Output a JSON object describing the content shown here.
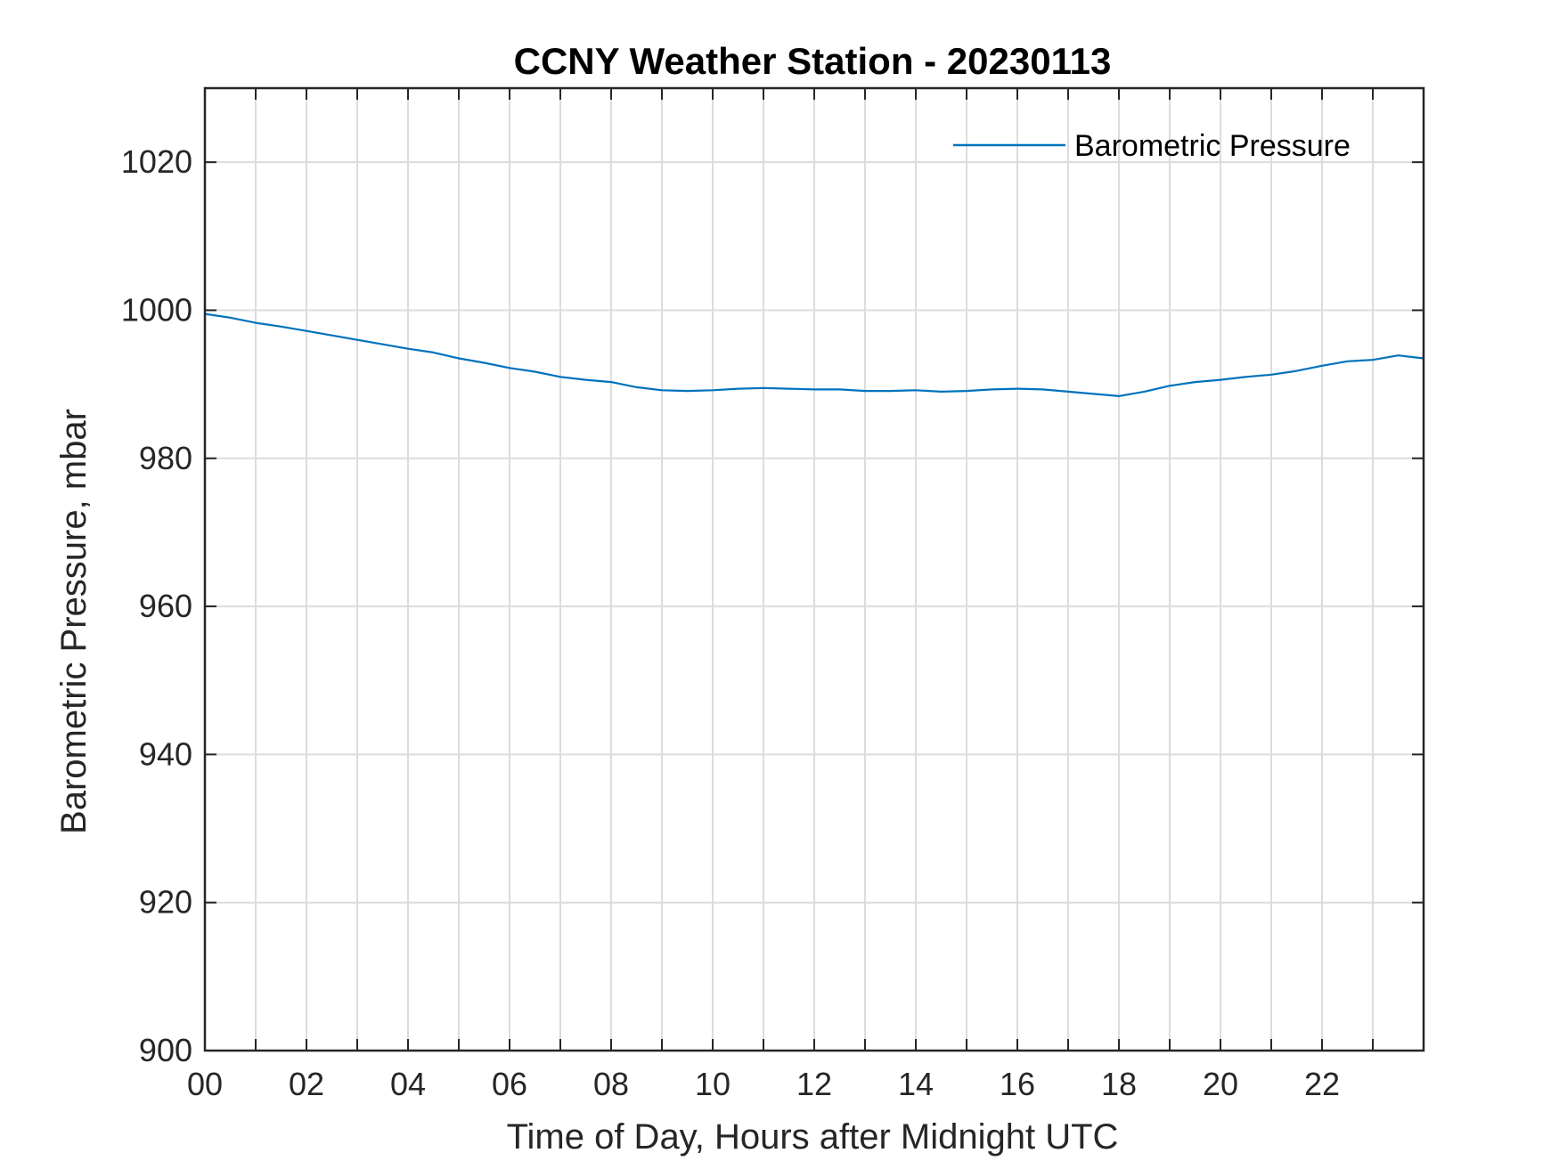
{
  "chart_data": {
    "type": "line",
    "title": "CCNY Weather Station - 20230113",
    "xlabel": "Time of Day, Hours after Midnight UTC",
    "ylabel": "Barometric Pressure, mbar",
    "xlim": [
      0,
      24
    ],
    "ylim": [
      900,
      1030
    ],
    "x_ticks": [
      0,
      2,
      4,
      6,
      8,
      10,
      12,
      14,
      16,
      18,
      20,
      22
    ],
    "x_tick_labels": [
      "00",
      "02",
      "04",
      "06",
      "08",
      "10",
      "12",
      "14",
      "16",
      "18",
      "20",
      "22"
    ],
    "x_minor_ticks": [
      1,
      3,
      5,
      7,
      9,
      11,
      13,
      15,
      17,
      19,
      21,
      23
    ],
    "y_ticks": [
      900,
      920,
      940,
      960,
      980,
      1000,
      1020
    ],
    "y_tick_labels": [
      "900",
      "920",
      "940",
      "960",
      "980",
      "1000",
      "1020"
    ],
    "grid": true,
    "legend_position": "top-right",
    "series": [
      {
        "name": "Barometric Pressure",
        "color": "#0072BD",
        "x": [
          0,
          0.5,
          1,
          1.5,
          2,
          2.5,
          3,
          3.5,
          4,
          4.5,
          5,
          5.5,
          6,
          6.5,
          7,
          7.5,
          8,
          8.5,
          9,
          9.5,
          10,
          10.5,
          11,
          11.5,
          12,
          12.5,
          13,
          13.5,
          14,
          14.5,
          15,
          15.5,
          16,
          16.5,
          17,
          17.5,
          18,
          18.5,
          19,
          19.5,
          20,
          20.5,
          21,
          21.5,
          22,
          22.5,
          23,
          23.5,
          24
        ],
        "y": [
          999.5,
          999.0,
          998.3,
          997.8,
          997.2,
          996.6,
          996.0,
          995.4,
          994.8,
          994.3,
          993.5,
          992.9,
          992.2,
          991.7,
          991.0,
          990.6,
          990.3,
          989.6,
          989.2,
          989.1,
          989.2,
          989.4,
          989.5,
          989.4,
          989.3,
          989.3,
          989.1,
          989.1,
          989.2,
          989.0,
          989.1,
          989.3,
          989.4,
          989.3,
          989.0,
          988.7,
          988.4,
          989.0,
          989.8,
          990.3,
          990.6,
          991.0,
          991.3,
          991.8,
          992.5,
          993.1,
          993.3,
          993.9,
          993.5
        ]
      }
    ]
  }
}
